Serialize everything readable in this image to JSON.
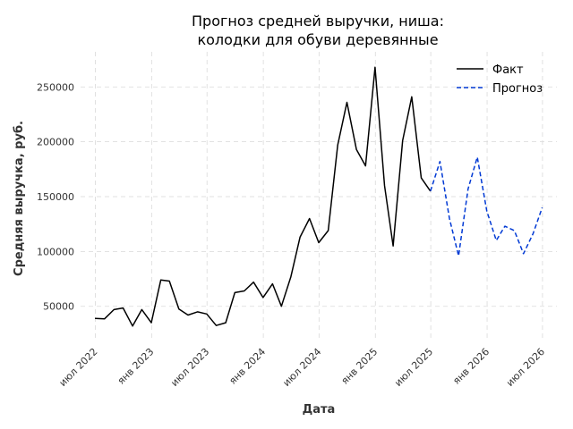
{
  "chart_data": {
    "type": "line",
    "title_line1": "Прогноз средней выручки, ниша:",
    "title_line2": "колодки для обуви деревянные",
    "xlabel": "Дата",
    "ylabel": "Средняя выручка, руб.",
    "ylim": [
      18000,
      282000
    ],
    "xlim": [
      "2022-05-14",
      "2026-08-17"
    ],
    "grid": true,
    "legend_position": "top-right",
    "x_ticks": [
      {
        "date": "2022-07-01",
        "label": "июл 2022"
      },
      {
        "date": "2023-01-01",
        "label": "янв 2023"
      },
      {
        "date": "2023-07-01",
        "label": "июл 2023"
      },
      {
        "date": "2024-01-01",
        "label": "янв 2024"
      },
      {
        "date": "2024-07-01",
        "label": "июл 2024"
      },
      {
        "date": "2025-01-01",
        "label": "янв 2025"
      },
      {
        "date": "2025-07-01",
        "label": "июл 2025"
      },
      {
        "date": "2026-01-01",
        "label": "янв 2026"
      },
      {
        "date": "2026-07-01",
        "label": "июл 2026"
      }
    ],
    "y_ticks": [
      {
        "value": 50000,
        "label": "50000"
      },
      {
        "value": 100000,
        "label": "100000"
      },
      {
        "value": 150000,
        "label": "150000"
      },
      {
        "value": 200000,
        "label": "200000"
      },
      {
        "value": 250000,
        "label": "250000"
      }
    ],
    "series": [
      {
        "name": "Факт",
        "color": "#000000",
        "dash": "solid",
        "points": [
          [
            "2022-06-30",
            39000
          ],
          [
            "2022-07-31",
            38500
          ],
          [
            "2022-08-31",
            47000
          ],
          [
            "2022-09-30",
            48500
          ],
          [
            "2022-10-31",
            32000
          ],
          [
            "2022-11-30",
            47000
          ],
          [
            "2022-12-31",
            35000
          ],
          [
            "2023-01-31",
            74000
          ],
          [
            "2023-02-28",
            73000
          ],
          [
            "2023-03-31",
            47500
          ],
          [
            "2023-04-30",
            42000
          ],
          [
            "2023-05-31",
            45000
          ],
          [
            "2023-06-30",
            43000
          ],
          [
            "2023-07-31",
            32500
          ],
          [
            "2023-08-31",
            35000
          ],
          [
            "2023-09-30",
            62500
          ],
          [
            "2023-10-31",
            64000
          ],
          [
            "2023-11-30",
            72000
          ],
          [
            "2023-12-31",
            58000
          ],
          [
            "2024-01-31",
            70500
          ],
          [
            "2024-02-29",
            50000
          ],
          [
            "2024-03-31",
            77000
          ],
          [
            "2024-04-30",
            113000
          ],
          [
            "2024-05-31",
            130000
          ],
          [
            "2024-06-30",
            108000
          ],
          [
            "2024-07-31",
            119000
          ],
          [
            "2024-08-31",
            197000
          ],
          [
            "2024-09-30",
            236000
          ],
          [
            "2024-10-31",
            193000
          ],
          [
            "2024-11-30",
            178000
          ],
          [
            "2024-12-31",
            268000
          ],
          [
            "2025-01-31",
            160000
          ],
          [
            "2025-02-28",
            105000
          ],
          [
            "2025-03-31",
            201000
          ],
          [
            "2025-04-30",
            241000
          ],
          [
            "2025-05-31",
            167000
          ],
          [
            "2025-06-30",
            155000
          ]
        ]
      },
      {
        "name": "Прогноз",
        "color": "#0039d4",
        "dash": "dashed",
        "points": [
          [
            "2025-06-30",
            155000
          ],
          [
            "2025-07-31",
            182000
          ],
          [
            "2025-08-31",
            130000
          ],
          [
            "2025-09-30",
            96000
          ],
          [
            "2025-10-31",
            157000
          ],
          [
            "2025-11-30",
            186000
          ],
          [
            "2025-12-31",
            137000
          ],
          [
            "2026-01-31",
            110000
          ],
          [
            "2026-02-28",
            123000
          ],
          [
            "2026-03-31",
            119000
          ],
          [
            "2026-04-30",
            98000
          ],
          [
            "2026-05-31",
            116000
          ],
          [
            "2026-06-30",
            140000
          ]
        ]
      }
    ]
  }
}
